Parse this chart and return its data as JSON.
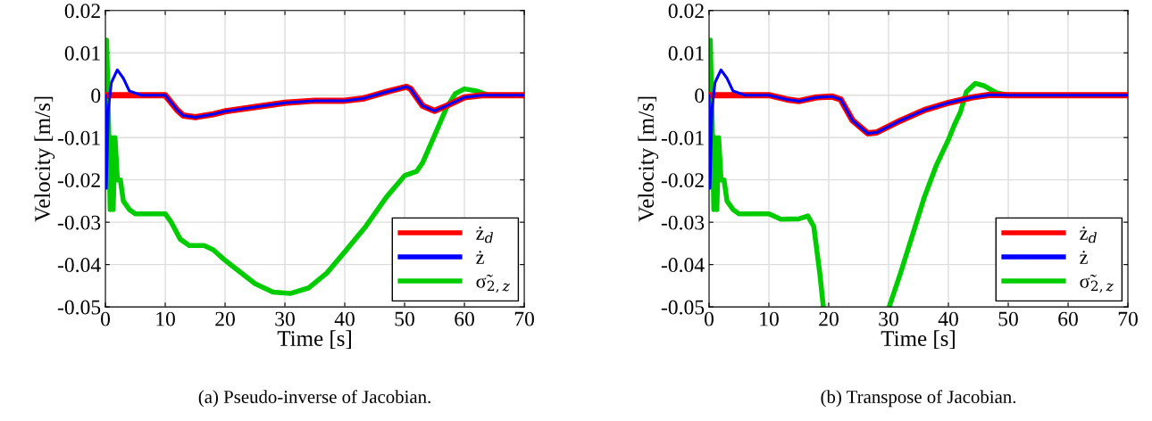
{
  "chart_data": [
    {
      "type": "line",
      "xlabel": "Time [s]",
      "ylabel": "Velocity [m/s]",
      "annotations": [
        "(a) Pseudo-inverse of Jacobian."
      ],
      "xlim": [
        0,
        70
      ],
      "ylim": [
        -0.05,
        0.02
      ],
      "xticks": [
        0,
        10,
        20,
        30,
        40,
        50,
        60,
        70
      ],
      "yticks": [
        -0.05,
        -0.04,
        -0.03,
        -0.02,
        -0.01,
        0,
        0.01,
        0.02
      ],
      "grid": true,
      "legend": "lower right",
      "series": [
        {
          "name": "ż$_{d}$",
          "color": "#ff0000",
          "x": [
            0,
            6,
            10,
            12,
            13,
            15,
            18,
            20,
            25,
            30,
            35,
            40,
            43,
            47,
            50.3,
            51,
            53,
            55,
            57,
            60,
            63,
            70
          ],
          "values": [
            0,
            0,
            0,
            -0.0035,
            -0.0048,
            -0.0052,
            -0.0045,
            -0.0038,
            -0.0028,
            -0.0018,
            -0.0013,
            -0.0013,
            -0.0008,
            0.0008,
            0.002,
            0.0015,
            -0.0025,
            -0.0037,
            -0.0025,
            -0.0005,
            0,
            0
          ]
        },
        {
          "name": "ż",
          "color": "#0000ff",
          "x": [
            0,
            0.15,
            0.5,
            1,
            2,
            3,
            4,
            6,
            10,
            12,
            13,
            15,
            18,
            20,
            25,
            30,
            35,
            40,
            43,
            47,
            50.3,
            51,
            53,
            55,
            57,
            60,
            63,
            70
          ],
          "values": [
            0,
            -0.022,
            -0.003,
            0.003,
            0.006,
            0.004,
            0.001,
            0,
            0,
            -0.0035,
            -0.0048,
            -0.0052,
            -0.0045,
            -0.0038,
            -0.0028,
            -0.0018,
            -0.0013,
            -0.0013,
            -0.0008,
            0.0008,
            0.002,
            0.0015,
            -0.0025,
            -0.0037,
            -0.0025,
            -0.0005,
            0,
            0
          ]
        },
        {
          "name": "σ̃$_{2,z}$",
          "color": "#00cc00",
          "x": [
            0,
            0.2,
            0.5,
            0.8,
            1.0,
            1.3,
            1.6,
            2,
            2.5,
            3,
            4,
            5,
            10,
            11,
            12.5,
            14,
            16.5,
            18,
            20,
            25,
            28,
            31,
            34,
            37,
            40,
            43.5,
            47,
            50,
            52,
            53,
            55,
            57,
            58.5,
            60,
            62,
            64,
            70
          ],
          "values": [
            0,
            0.013,
            -0.005,
            -0.027,
            -0.01,
            -0.027,
            -0.01,
            -0.02,
            -0.02,
            -0.025,
            -0.027,
            -0.028,
            -0.028,
            -0.03,
            -0.034,
            -0.0355,
            -0.0355,
            -0.0365,
            -0.039,
            -0.0445,
            -0.0465,
            -0.0468,
            -0.0455,
            -0.042,
            -0.037,
            -0.031,
            -0.024,
            -0.019,
            -0.018,
            -0.016,
            -0.0095,
            -0.003,
            0.0004,
            0.0015,
            0.001,
            0,
            0
          ]
        }
      ]
    },
    {
      "type": "line",
      "xlabel": "Time [s]",
      "ylabel": "Velocity [m/s]",
      "annotations": [
        "(b) Transpose of Jacobian."
      ],
      "xlim": [
        0,
        70
      ],
      "ylim": [
        -0.05,
        0.02
      ],
      "xticks": [
        0,
        10,
        20,
        30,
        40,
        50,
        60,
        70
      ],
      "yticks": [
        -0.05,
        -0.04,
        -0.03,
        -0.02,
        -0.01,
        0,
        0.01,
        0.02
      ],
      "grid": true,
      "legend": "lower right",
      "series": [
        {
          "name": "ż$_{d}$",
          "color": "#ff0000",
          "x": [
            0,
            6,
            10,
            13,
            15,
            18,
            20.5,
            22,
            24,
            26.5,
            28,
            32,
            36,
            40,
            44,
            47,
            50,
            70
          ],
          "values": [
            0,
            0,
            0,
            -0.001,
            -0.0014,
            -0.0005,
            -0.0003,
            -0.001,
            -0.006,
            -0.009,
            -0.0088,
            -0.006,
            -0.0035,
            -0.0018,
            -0.0005,
            0.0001,
            0,
            0
          ]
        },
        {
          "name": "ż",
          "color": "#0000ff",
          "x": [
            0,
            0.15,
            0.5,
            1,
            2,
            3,
            4,
            6,
            10,
            13,
            15,
            18,
            20.5,
            22,
            24,
            26.5,
            28,
            32,
            36,
            40,
            44,
            47,
            50,
            70
          ],
          "values": [
            0,
            -0.022,
            -0.003,
            0.003,
            0.006,
            0.004,
            0.001,
            0,
            0,
            -0.001,
            -0.0014,
            -0.0005,
            -0.0003,
            -0.001,
            -0.006,
            -0.009,
            -0.0088,
            -0.006,
            -0.0035,
            -0.0018,
            -0.0005,
            0.0001,
            0,
            0
          ]
        },
        {
          "name": "σ̃$_{2,z}$",
          "color": "#00cc00",
          "x": [
            0,
            0.2,
            0.5,
            0.8,
            1.0,
            1.3,
            1.6,
            2,
            2.5,
            3,
            4,
            5,
            10,
            12,
            15,
            16.5,
            17.5,
            18.5,
            19.1,
            25,
            30.1,
            32,
            34,
            36,
            38,
            40,
            41,
            42,
            43,
            44.5,
            46,
            48,
            50,
            70
          ],
          "values": [
            0,
            0.013,
            -0.005,
            -0.027,
            -0.01,
            -0.027,
            -0.01,
            -0.02,
            -0.02,
            -0.025,
            -0.027,
            -0.028,
            -0.028,
            -0.0293,
            -0.0292,
            -0.0285,
            -0.031,
            -0.042,
            -0.05,
            null,
            -0.05,
            -0.042,
            -0.033,
            -0.024,
            -0.0165,
            -0.0105,
            -0.007,
            -0.004,
            0.0008,
            0.0028,
            0.0022,
            0.0006,
            0,
            0
          ]
        }
      ]
    }
  ]
}
